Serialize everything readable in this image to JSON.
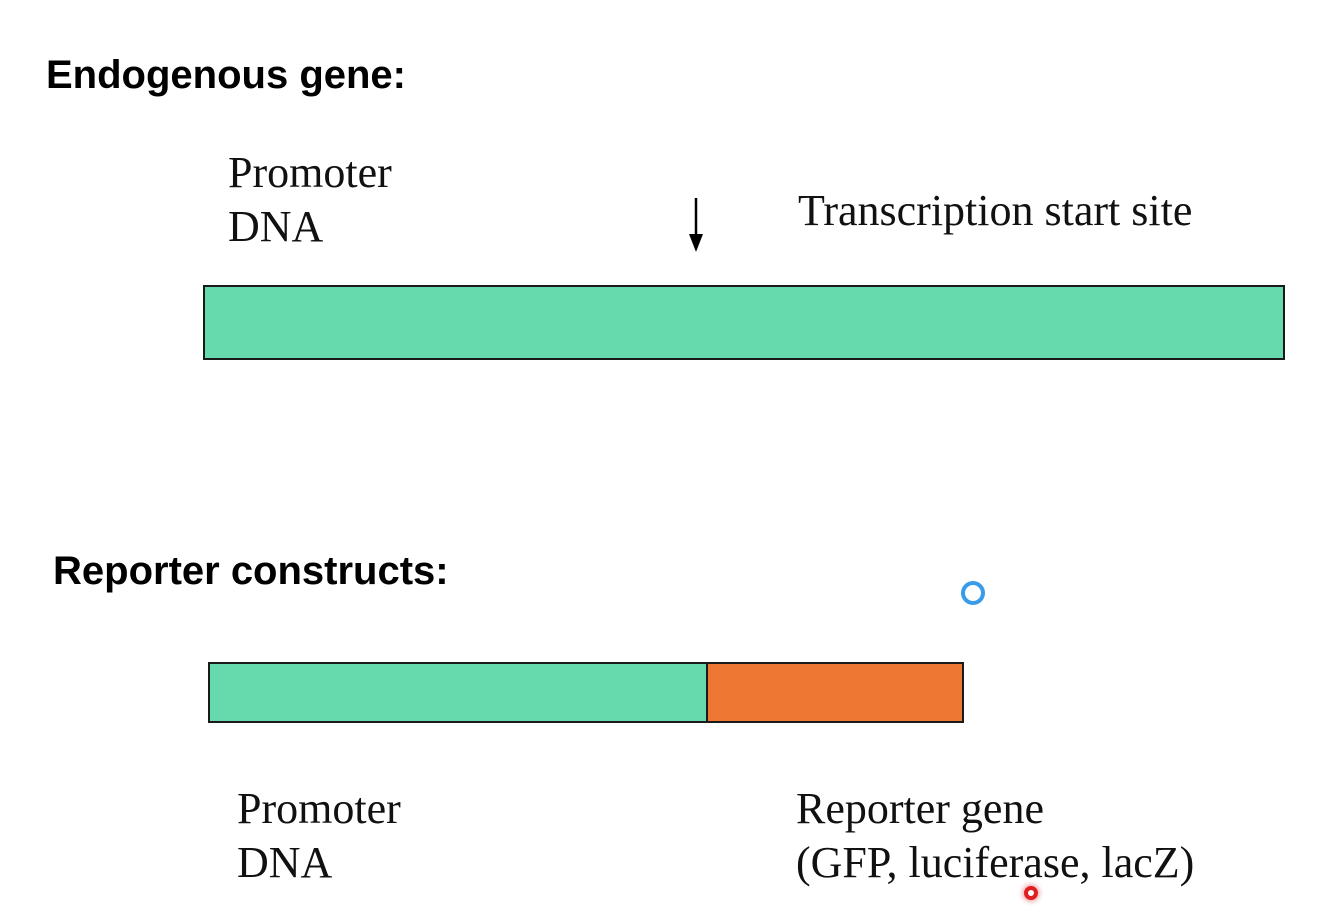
{
  "endogenous": {
    "heading": "Endogenous gene:",
    "promoter_line1": "Promoter",
    "promoter_line2": "DNA",
    "tss_label": "Transcription start site"
  },
  "reporter": {
    "heading": "Reporter constructs:",
    "promoter_line1": "Promoter",
    "promoter_line2": "DNA",
    "gene_line1": "Reporter gene",
    "gene_line2": "(GFP, luciferase, lacZ)"
  },
  "colors": {
    "promoter_dna": "#66d9ad",
    "reporter_gene": "#ee7733",
    "cursor_ring": "#3a9be8",
    "pointer_dot": "#e02020"
  }
}
